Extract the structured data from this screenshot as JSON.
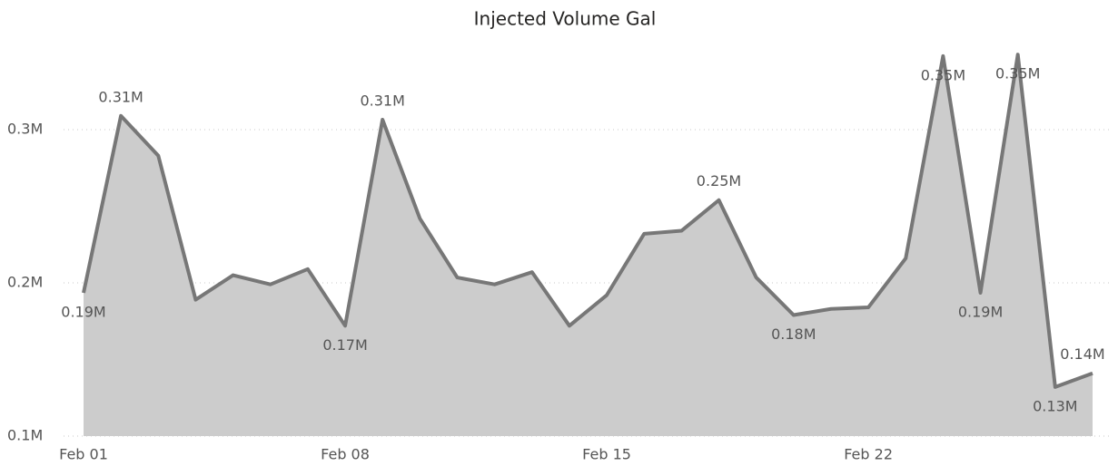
{
  "chart_data": {
    "type": "area",
    "title": "Injected Volume Gal",
    "categories": [
      "Feb 01",
      null,
      null,
      null,
      null,
      null,
      null,
      "Feb 08",
      null,
      null,
      null,
      null,
      null,
      null,
      "Feb 15",
      null,
      null,
      null,
      null,
      null,
      null,
      "Feb 22",
      null,
      null,
      null,
      null,
      null,
      null
    ],
    "values": [
      193500,
      309000,
      283000,
      189000,
      205000,
      199000,
      209000,
      172000,
      306500,
      242000,
      203500,
      199000,
      207000,
      172000,
      192000,
      232000,
      234000,
      254000,
      203500,
      179000,
      183000,
      184000,
      216000,
      348000,
      193500,
      349000,
      132000,
      141000
    ],
    "value_labels": [
      "0.19M",
      "0.31M",
      null,
      null,
      null,
      null,
      null,
      "0.17M",
      "0.31M",
      null,
      null,
      null,
      null,
      null,
      null,
      null,
      null,
      "0.25M",
      null,
      "0.18M",
      null,
      null,
      null,
      "0.35M",
      "0.19M",
      "0.35M",
      "0.13M",
      "0.14M"
    ],
    "line_color": "#777777",
    "fill_color": "#cccccc",
    "ylim": [
      100000,
      350000
    ],
    "yticks": [
      {
        "value": 100000,
        "label": "0.1M"
      },
      {
        "value": 200000,
        "label": "0.2M"
      },
      {
        "value": 300000,
        "label": "0.3M"
      }
    ],
    "grid": true
  }
}
